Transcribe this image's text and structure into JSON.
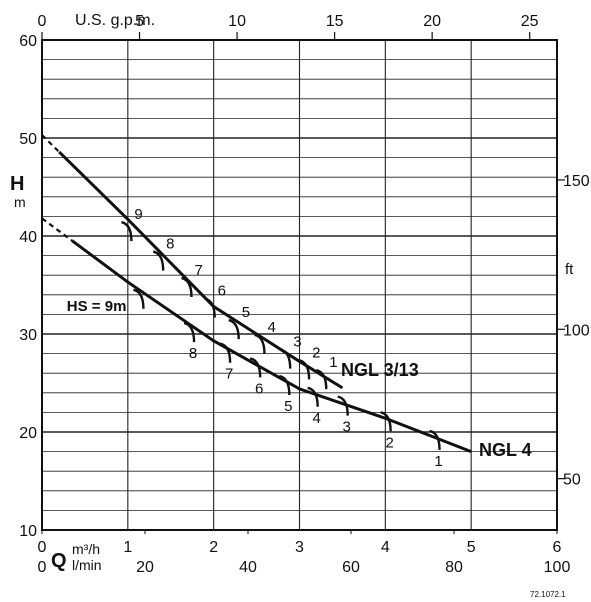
{
  "chart_data": {
    "type": "line",
    "top_axis": {
      "label": "U.S. g.p.m.",
      "ticks": [
        0,
        5,
        10,
        15,
        20,
        25
      ]
    },
    "bottom_axis": {
      "symbol": "Q",
      "unit_m3h": "m³/h",
      "unit_lmin": "l/min",
      "ticks_m3h": [
        0,
        1,
        2,
        3,
        4,
        5,
        6
      ],
      "ticks_lmin": [
        0,
        20,
        40,
        60,
        80,
        100
      ]
    },
    "left_axis": {
      "symbol": "H",
      "unit": "m",
      "ticks": [
        10,
        20,
        30,
        40,
        50,
        60
      ],
      "ylim": [
        10,
        60
      ]
    },
    "right_axis": {
      "unit": "ft",
      "ticks": [
        50,
        100,
        150
      ]
    },
    "xlim": [
      0,
      6
    ],
    "series": [
      {
        "name": "NGL 3/13",
        "x": [
          0,
          1,
          2,
          3,
          3.5
        ],
        "y": [
          50.3,
          41.7,
          32.8,
          27.2,
          24.5
        ],
        "markers": [
          {
            "label": "9",
            "x": 1.03,
            "y": 40.9
          },
          {
            "label": "8",
            "x": 1.4,
            "y": 37.9
          },
          {
            "label": "7",
            "x": 1.73,
            "y": 35.2
          },
          {
            "label": "6",
            "x": 2.0,
            "y": 33.1
          },
          {
            "label": "5",
            "x": 2.28,
            "y": 30.9
          },
          {
            "label": "4",
            "x": 2.58,
            "y": 29.4
          },
          {
            "label": "3",
            "x": 2.88,
            "y": 27.9
          },
          {
            "label": "2",
            "x": 3.1,
            "y": 26.8
          },
          {
            "label": "1",
            "x": 3.3,
            "y": 25.8
          }
        ]
      },
      {
        "name": "NGL 4",
        "x": [
          0,
          1,
          2,
          3,
          4,
          5
        ],
        "y": [
          41.8,
          35.3,
          29.3,
          24.4,
          21.4,
          18.0
        ],
        "markers": [
          {
            "label": "HS = 9m",
            "x": 1.17,
            "y": 34.0
          },
          {
            "label": "8",
            "x": 1.76,
            "y": 30.6
          },
          {
            "label": "7",
            "x": 2.18,
            "y": 28.5
          },
          {
            "label": "6",
            "x": 2.53,
            "y": 27.0
          },
          {
            "label": "5",
            "x": 2.87,
            "y": 25.2
          },
          {
            "label": "4",
            "x": 3.2,
            "y": 24.0
          },
          {
            "label": "3",
            "x": 3.55,
            "y": 23.1
          },
          {
            "label": "2",
            "x": 4.05,
            "y": 21.5
          },
          {
            "label": "1",
            "x": 4.62,
            "y": 19.6
          }
        ]
      }
    ],
    "grid": true
  },
  "doc_code": "72.1072.1"
}
